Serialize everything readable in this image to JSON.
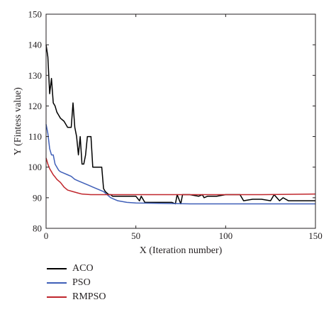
{
  "chart_data": {
    "type": "line",
    "xlabel": "X (Iteration number)",
    "ylabel": "Y (Fintess value)",
    "xlim": [
      0,
      150
    ],
    "ylim": [
      80,
      150
    ],
    "xticks": [
      0,
      50,
      100,
      150
    ],
    "yticks": [
      80,
      90,
      100,
      110,
      120,
      130,
      140,
      150
    ],
    "grid": false,
    "legend_position": "below",
    "series": [
      {
        "name": "ACO",
        "color": "#000000",
        "x": [
          0,
          1,
          2,
          3,
          4,
          5,
          6,
          7,
          8,
          10,
          12,
          14,
          15,
          16,
          17,
          18,
          19,
          20,
          21,
          22,
          23,
          24,
          25,
          26,
          27,
          28,
          29,
          30,
          31,
          32,
          33,
          34,
          35,
          36,
          37,
          38,
          40,
          45,
          50,
          52,
          53,
          55,
          60,
          65,
          70,
          72,
          73,
          75,
          76,
          80,
          85,
          87,
          88,
          90,
          95,
          100,
          105,
          108,
          110,
          115,
          120,
          125,
          127,
          130,
          132,
          135,
          140,
          145,
          150
        ],
        "y": [
          140,
          136,
          124,
          129,
          121,
          120,
          118,
          117,
          116,
          115,
          113,
          113,
          121,
          113,
          110,
          104,
          110,
          101,
          101,
          104,
          110,
          110,
          110,
          100,
          100,
          100,
          100,
          100,
          100,
          93,
          92,
          91.5,
          91,
          91,
          90.5,
          90.5,
          90.5,
          90.5,
          90.5,
          89,
          90.5,
          88.5,
          88.5,
          88.5,
          88.5,
          88,
          91,
          88,
          91,
          91,
          90.5,
          91,
          90,
          90.5,
          90.5,
          91,
          91,
          91,
          89,
          89.5,
          89.5,
          89,
          91,
          89,
          90,
          89,
          89,
          89,
          89
        ]
      },
      {
        "name": "PSO",
        "color": "#3f5fb8",
        "x": [
          0,
          1,
          2,
          3,
          4,
          5,
          6,
          7,
          8,
          10,
          12,
          14,
          16,
          18,
          20,
          22,
          24,
          26,
          28,
          30,
          32,
          34,
          36,
          38,
          40,
          45,
          50,
          60,
          80,
          100,
          120,
          150
        ],
        "y": [
          114,
          111,
          106,
          104,
          104,
          101,
          100,
          99,
          98.5,
          98,
          97.5,
          97,
          96,
          95.5,
          95,
          94.5,
          94,
          93.5,
          93,
          92.5,
          92,
          91,
          90,
          89.5,
          89,
          88.5,
          88.3,
          88.2,
          88,
          88,
          88,
          88
        ]
      },
      {
        "name": "RMPSO",
        "color": "#c0262c",
        "x": [
          0,
          1,
          2,
          3,
          4,
          5,
          6,
          8,
          10,
          12,
          15,
          18,
          20,
          25,
          30,
          35,
          40,
          50,
          60,
          80,
          100,
          120,
          150
        ],
        "y": [
          103,
          101,
          99.5,
          98.5,
          97.5,
          96.8,
          96,
          95,
          93.5,
          92.5,
          92,
          91.5,
          91.2,
          91,
          91,
          91,
          91,
          91,
          91,
          91,
          91,
          91,
          91.2
        ]
      }
    ]
  }
}
